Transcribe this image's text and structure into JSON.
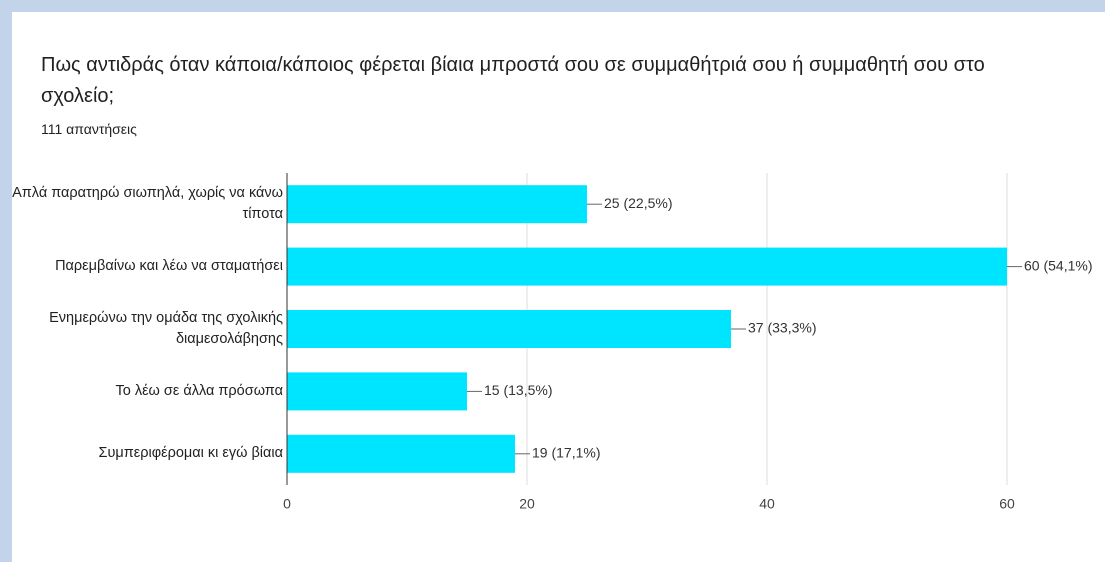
{
  "chart_data": {
    "type": "bar",
    "orientation": "horizontal",
    "title": "Πως αντιδράς όταν κάποια/κάποιος φέρεται βίαια μπροστά σου σε συμμαθήτριά σου ή συμμαθητή σου στο σχολείο;",
    "subtitle": "111 απαντήσεις",
    "categories": [
      "Απλά παρατηρώ σιωπηλά, χωρίς να κάνω τίποτα",
      "Παρεμβαίνω και λέω να σταματήσει",
      "Ενημερώνω την ομάδα της σχολικής διαμεσολάβησης",
      "Το λέω σε άλλα πρόσωπα",
      "Συμπεριφέρομαι κι εγώ βίαια"
    ],
    "values": [
      25,
      60,
      37,
      15,
      19
    ],
    "value_labels": [
      "25 (22,5%)",
      "60 (54,1%)",
      "37 (33,3%)",
      "15 (13,5%)",
      "19 (17,1%)"
    ],
    "color": "#00e5ff",
    "xlim": [
      0,
      60
    ],
    "xticks": [
      0,
      20,
      40,
      60
    ],
    "grid": true
  }
}
